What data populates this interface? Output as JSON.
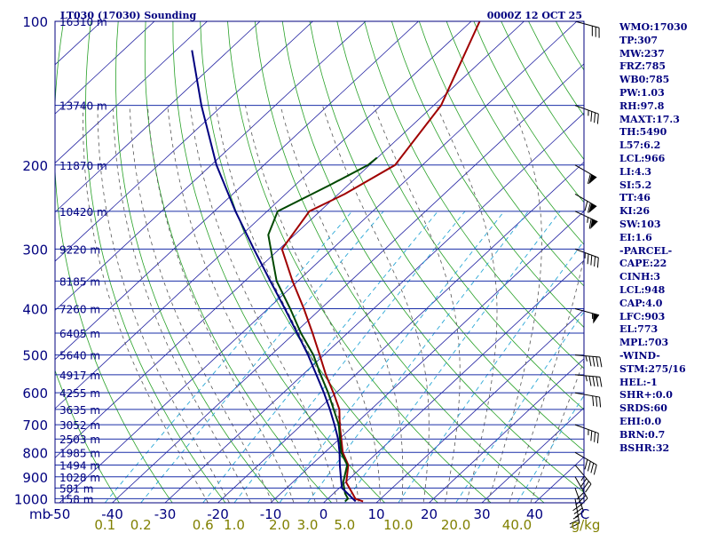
{
  "chart_data": {
    "type": "line",
    "title": "LT030 (17030) Sounding",
    "subtitle": "0000Z 12 OCT 25",
    "xlabel": "C",
    "ylabel": "mb",
    "pressure_ticks": [
      100,
      200,
      300,
      400,
      500,
      600,
      700,
      800,
      900,
      1000
    ],
    "temperature_ticks": [
      "-50",
      "-40",
      "-30",
      "-20",
      "-10",
      "0",
      "10",
      "20",
      "30",
      "40"
    ],
    "temperature_unit": "C",
    "mixing_ratio_ticks": [
      "0.1",
      "0.2",
      "0.6",
      "1.0",
      "2.0",
      "3.0",
      "5.0",
      "10.0",
      "20.0",
      "40.0"
    ],
    "mixing_ratio_unit": "g/kg",
    "height_levels": [
      {
        "p": 100,
        "label": "16310 m"
      },
      {
        "p": 150,
        "label": "13740 m"
      },
      {
        "p": 200,
        "label": "11870 m"
      },
      {
        "p": 250,
        "label": "10420 m"
      },
      {
        "p": 300,
        "label": "9220 m"
      },
      {
        "p": 350,
        "label": "8185 m"
      },
      {
        "p": 400,
        "label": "7260 m"
      },
      {
        "p": 450,
        "label": "6405 m"
      },
      {
        "p": 500,
        "label": "5640 m"
      },
      {
        "p": 550,
        "label": "4917 m"
      },
      {
        "p": 600,
        "label": "4255 m"
      },
      {
        "p": 650,
        "label": "3635 m"
      },
      {
        "p": 700,
        "label": "3052 m"
      },
      {
        "p": 750,
        "label": "2503 m"
      },
      {
        "p": 800,
        "label": "1985 m"
      },
      {
        "p": 850,
        "label": "1494 m"
      },
      {
        "p": 900,
        "label": "1028 m"
      },
      {
        "p": 950,
        "label": "581 m"
      },
      {
        "p": 1000,
        "label": "158 m"
      }
    ],
    "series": [
      {
        "name": "Temperature",
        "color": "#a00000",
        "points": [
          [
            1013,
            7.2
          ],
          [
            1000,
            5.2
          ],
          [
            975,
            3.6
          ],
          [
            925,
            0.2
          ],
          [
            850,
            -3.0
          ],
          [
            800,
            -6.6
          ],
          [
            700,
            -12.8
          ],
          [
            650,
            -16.0
          ],
          [
            600,
            -20.5
          ],
          [
            550,
            -25.6
          ],
          [
            500,
            -30.8
          ],
          [
            450,
            -36.6
          ],
          [
            400,
            -43.2
          ],
          [
            350,
            -51.0
          ],
          [
            300,
            -59.5
          ],
          [
            250,
            -62.0
          ],
          [
            230,
            -58.8
          ],
          [
            200,
            -55.2
          ],
          [
            150,
            -58.6
          ],
          [
            100,
            -68.4
          ]
        ]
      },
      {
        "name": "Dewpoint",
        "color": "#004800",
        "points": [
          [
            1013,
            3.8
          ],
          [
            1000,
            3.8
          ],
          [
            975,
            2.2
          ],
          [
            925,
            -0.4
          ],
          [
            850,
            -3.2
          ],
          [
            800,
            -6.9
          ],
          [
            700,
            -13.0
          ],
          [
            600,
            -21.5
          ],
          [
            550,
            -26.6
          ],
          [
            500,
            -32.0
          ],
          [
            450,
            -38.8
          ],
          [
            400,
            -45.8
          ],
          [
            350,
            -54.0
          ],
          [
            310,
            -60.0
          ],
          [
            280,
            -65.0
          ],
          [
            250,
            -68.0
          ],
          [
            220,
            -63.4
          ],
          [
            200,
            -60.3
          ],
          [
            193,
            -60.1
          ]
        ]
      },
      {
        "name": "Parcel",
        "color": "#00007f",
        "points": [
          [
            1013,
            5.8
          ],
          [
            950,
            0.5
          ],
          [
            900,
            -2.0
          ],
          [
            850,
            -4.6
          ],
          [
            800,
            -7.2
          ],
          [
            750,
            -10.2
          ],
          [
            700,
            -13.8
          ],
          [
            650,
            -17.8
          ],
          [
            600,
            -22.3
          ],
          [
            550,
            -27.4
          ],
          [
            500,
            -33.0
          ],
          [
            450,
            -39.5
          ],
          [
            400,
            -46.8
          ],
          [
            350,
            -55.2
          ],
          [
            300,
            -64.8
          ],
          [
            250,
            -76.0
          ],
          [
            200,
            -89.0
          ],
          [
            150,
            -104.0
          ],
          [
            115,
            -117.0
          ]
        ]
      }
    ],
    "wind_barbs": [
      {
        "p": 1000,
        "dir": 350,
        "spd": 25
      },
      {
        "p": 950,
        "dir": 340,
        "spd": 35
      },
      {
        "p": 900,
        "dir": 330,
        "spd": 30
      },
      {
        "p": 850,
        "dir": 320,
        "spd": 35
      },
      {
        "p": 800,
        "dir": 300,
        "spd": 40
      },
      {
        "p": 700,
        "dir": 290,
        "spd": 35
      },
      {
        "p": 600,
        "dir": 280,
        "spd": 30
      },
      {
        "p": 550,
        "dir": 275,
        "spd": 45
      },
      {
        "p": 500,
        "dir": 275,
        "spd": 45
      },
      {
        "p": 400,
        "dir": 285,
        "spd": 55
      },
      {
        "p": 300,
        "dir": 290,
        "spd": 45
      },
      {
        "p": 250,
        "dir": 295,
        "spd": 65
      },
      {
        "p": 230,
        "dir": 300,
        "spd": 70
      },
      {
        "p": 200,
        "dir": 300,
        "spd": 60
      },
      {
        "p": 150,
        "dir": 290,
        "spd": 35
      },
      {
        "p": 100,
        "dir": 285,
        "spd": 30
      }
    ]
  },
  "index_panel": [
    "WMO:17030",
    "TP:307",
    "MW:237",
    "FRZ:785",
    "WB0:785",
    "PW:1.03",
    "RH:97.8",
    "MAXT:17.3",
    "TH:5490",
    "L57:6.2",
    "LCL:966",
    "LI:4.3",
    "SI:5.2",
    "TT:46",
    "KI:26",
    "SW:103",
    "EI:1.6",
    "-PARCEL-",
    "CAPE:22",
    "CINH:3",
    "LCL:948",
    "CAP:4.0",
    "LFC:903",
    "EL:773",
    "MPL:703",
    "-WIND-",
    "STM:275/16",
    "HEL:-1",
    "SHR+:0.0",
    "SRDS:60",
    "EHI:0.0",
    "BRN:0.7",
    "BSHR:32"
  ],
  "colors": {
    "isobar": "#1a2fa8",
    "frame": "#00007f",
    "isotherm": "#2020a0",
    "dry_adiabat": "#27a027",
    "moist_adiabat": "#555555",
    "mixing_ratio": "#2aa7d6",
    "axis_text": "#00007f",
    "mixing_text": "#808000"
  }
}
